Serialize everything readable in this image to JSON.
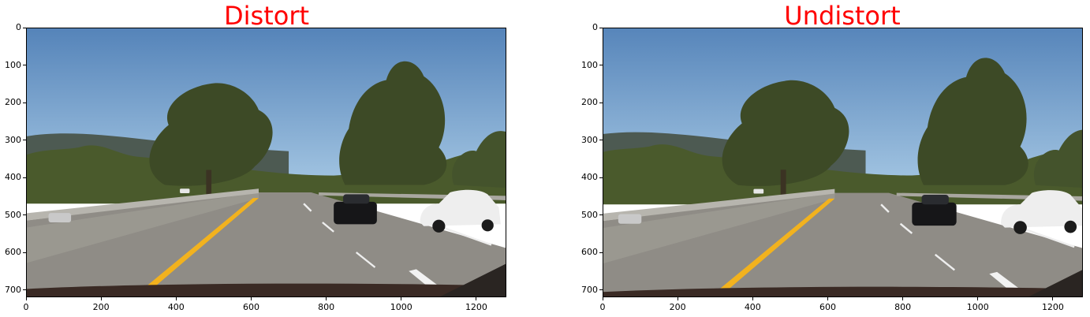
{
  "colors": {
    "title": "#ff0000",
    "sky_top": "#4d7db5",
    "sky_bottom": "#9fc2e0",
    "road": "#8f8c86",
    "lane_yellow": "#f2b21e",
    "barrier": "#9a9890",
    "foliage": "#3d4a26",
    "hills": "#4d5a52"
  },
  "chart_data": [
    {
      "type": "image",
      "title": "Distort",
      "content": "road-photo",
      "image_width": 1280,
      "image_height": 720,
      "xticks": [
        0,
        200,
        400,
        600,
        800,
        1000,
        1200
      ],
      "yticks": [
        0,
        100,
        200,
        300,
        400,
        500,
        600,
        700
      ],
      "xlim": [
        0,
        1280
      ],
      "ylim": [
        720,
        0
      ]
    },
    {
      "type": "image",
      "title": "Undistort",
      "content": "road-photo",
      "image_width": 1280,
      "image_height": 720,
      "xticks": [
        0,
        200,
        400,
        600,
        800,
        1000,
        1200
      ],
      "yticks": [
        0,
        100,
        200,
        300,
        400,
        500,
        600,
        700
      ],
      "xlim": [
        0,
        1280
      ],
      "ylim": [
        720,
        0
      ]
    }
  ]
}
